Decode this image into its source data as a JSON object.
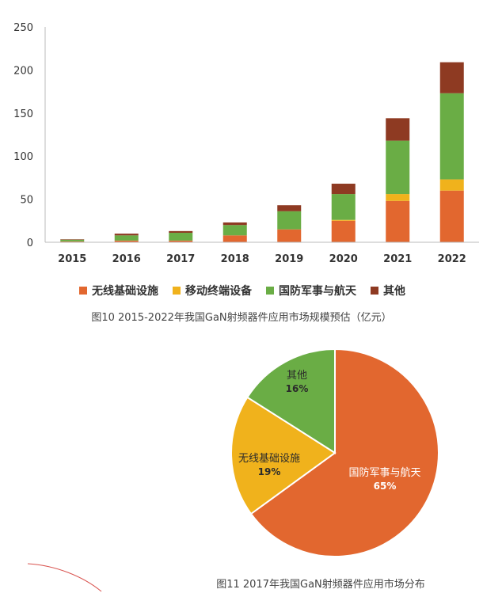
{
  "colors": {
    "wireless": "#e2672f",
    "mobile": "#f0b21c",
    "defense": "#6aad45",
    "other": "#8e3a22",
    "axis": "#bbbbbb",
    "text": "#333333"
  },
  "chart_data": [
    {
      "type": "bar",
      "stacked": true,
      "categories": [
        "2015",
        "2016",
        "2017",
        "2018",
        "2019",
        "2020",
        "2021",
        "2022"
      ],
      "series": [
        {
          "name": "无线基础设施",
          "color_key": "wireless",
          "values": [
            1,
            2,
            2,
            8,
            15,
            25,
            48,
            60
          ]
        },
        {
          "name": "移动终端设备",
          "color_key": "mobile",
          "values": [
            0,
            0,
            0,
            0,
            0,
            1,
            8,
            13
          ]
        },
        {
          "name": "国防军事与航天",
          "color_key": "defense",
          "values": [
            2,
            6,
            9,
            12,
            21,
            30,
            62,
            100
          ]
        },
        {
          "name": "其他",
          "color_key": "other",
          "values": [
            0.5,
            2,
            2,
            3,
            7,
            12,
            26,
            36
          ]
        }
      ],
      "ylim": [
        0,
        250
      ],
      "yticks": [
        "0",
        "50",
        "100",
        "150",
        "200",
        "250"
      ],
      "title": "图10 2015-2022年我国GaN射频器件应用市场规模预估（亿元）",
      "legend_placement": "bottom",
      "grid": false
    },
    {
      "type": "pie",
      "slices": [
        {
          "name": "国防军事与航天",
          "value": 65,
          "label": "65%",
          "color_key": "wireless"
        },
        {
          "name": "无线基础设施",
          "value": 19,
          "label": "19%",
          "color_key": "mobile"
        },
        {
          "name": "其他",
          "value": 16,
          "label": "16%",
          "color_key": "defense"
        }
      ],
      "title": "图11  2017年我国GaN射频器件应用市场分布"
    }
  ]
}
